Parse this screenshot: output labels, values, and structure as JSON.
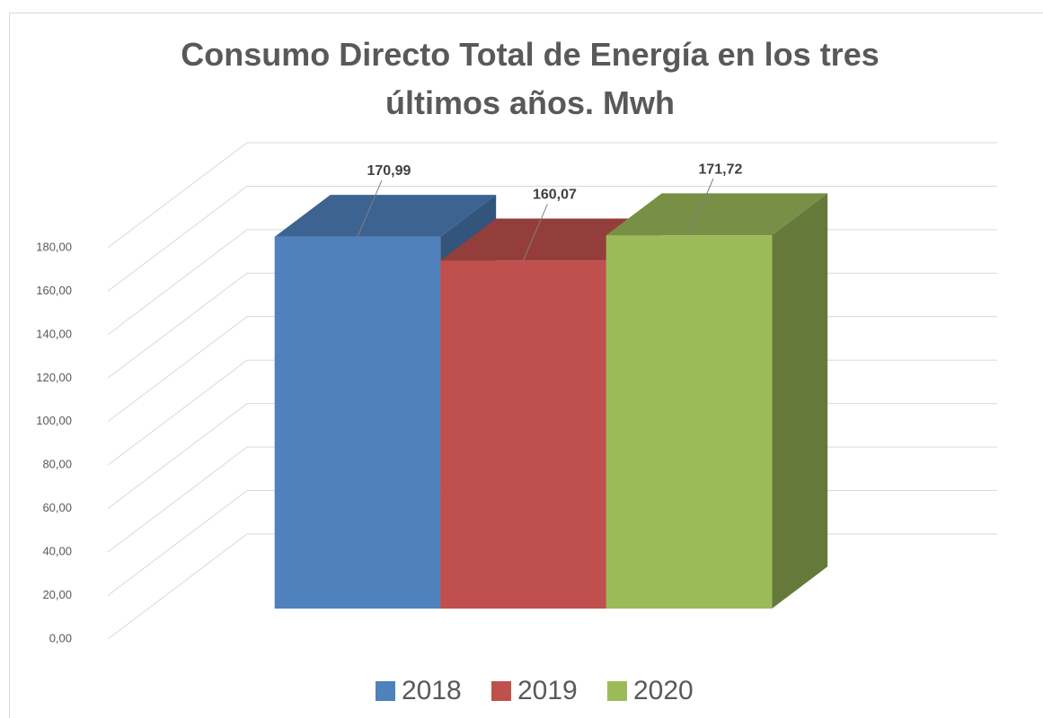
{
  "chart_data": {
    "type": "bar",
    "title": "Consumo Directo Total de Energía en los tres últimos años. Mwh",
    "categories": [
      null
    ],
    "series": [
      {
        "name": "2018",
        "color": "#4f81bd",
        "values": [
          170.99
        ],
        "value_labels": [
          "170,99"
        ]
      },
      {
        "name": "2019",
        "color": "#c0504d",
        "values": [
          160.07
        ],
        "value_labels": [
          "160,07"
        ]
      },
      {
        "name": "2020",
        "color": "#9bbb59",
        "values": [
          171.72
        ],
        "value_labels": [
          "171,72"
        ]
      }
    ],
    "ylim": [
      0,
      180
    ],
    "yticks": [
      {
        "value": 0,
        "label": "0,00"
      },
      {
        "value": 20,
        "label": "20,00"
      },
      {
        "value": 40,
        "label": "40,00"
      },
      {
        "value": 60,
        "label": "60,00"
      },
      {
        "value": 80,
        "label": "80,00"
      },
      {
        "value": 100,
        "label": "100,00"
      },
      {
        "value": 120,
        "label": "120,00"
      },
      {
        "value": 140,
        "label": "140,00"
      },
      {
        "value": 160,
        "label": "160,00"
      },
      {
        "value": 180,
        "label": "180,00"
      }
    ],
    "grid": true,
    "legend": "bottom"
  }
}
